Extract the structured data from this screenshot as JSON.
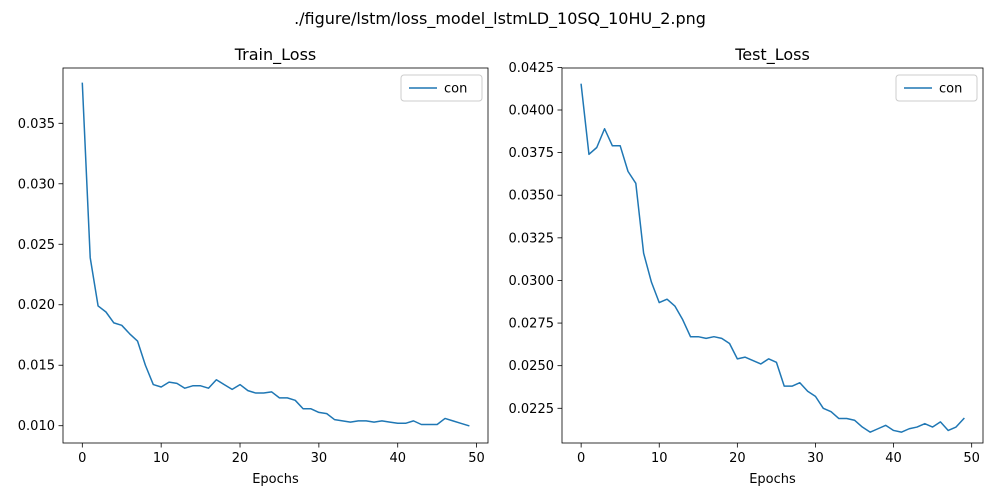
{
  "figure": {
    "suptitle": "./figure/lstm/loss_model_lstmLD_10SQ_10HU_2.png",
    "line_color": "#1f77b4"
  },
  "chart_data": [
    {
      "type": "line",
      "title": "Train_Loss",
      "xlabel": "Epochs",
      "ylabel": "",
      "xlim": [
        -2.45,
        51.45
      ],
      "ylim": [
        0.008571,
        0.039571
      ],
      "x_ticks": [
        0,
        10,
        20,
        30,
        40,
        50
      ],
      "x_tick_labels": [
        "0",
        "10",
        "20",
        "30",
        "40",
        "50"
      ],
      "y_ticks": [
        0.01,
        0.015,
        0.02,
        0.025,
        0.03,
        0.035
      ],
      "y_tick_labels": [
        "0.010",
        "0.015",
        "0.020",
        "0.025",
        "0.030",
        "0.035"
      ],
      "grid": false,
      "legend_position": "top-right",
      "series": [
        {
          "name": "con",
          "x": [
            0,
            1,
            2,
            3,
            4,
            5,
            6,
            7,
            8,
            9,
            10,
            11,
            12,
            13,
            14,
            15,
            16,
            17,
            18,
            19,
            20,
            21,
            22,
            23,
            24,
            25,
            26,
            27,
            28,
            29,
            30,
            31,
            32,
            33,
            34,
            35,
            36,
            37,
            38,
            39,
            40,
            41,
            42,
            43,
            44,
            45,
            46,
            47,
            48,
            49
          ],
          "values": [
            0.0383,
            0.0239,
            0.0199,
            0.0194,
            0.0185,
            0.0183,
            0.0176,
            0.017,
            0.015,
            0.0134,
            0.0132,
            0.0136,
            0.0135,
            0.0131,
            0.0133,
            0.0133,
            0.0131,
            0.0138,
            0.0134,
            0.013,
            0.0134,
            0.0129,
            0.0127,
            0.0127,
            0.0128,
            0.0123,
            0.0123,
            0.0121,
            0.0114,
            0.0114,
            0.0111,
            0.011,
            0.0105,
            0.0104,
            0.0103,
            0.0104,
            0.0104,
            0.0103,
            0.0104,
            0.0103,
            0.0102,
            0.0102,
            0.0104,
            0.0101,
            0.0101,
            0.0101,
            0.0106,
            0.0104,
            0.0102,
            0.01
          ]
        }
      ]
    },
    {
      "type": "line",
      "title": "Test_Loss",
      "xlabel": "Epochs",
      "ylabel": "",
      "xlim": [
        -2.45,
        51.45
      ],
      "ylim": [
        0.020464,
        0.042464
      ],
      "x_ticks": [
        0,
        10,
        20,
        30,
        40,
        50
      ],
      "x_tick_labels": [
        "0",
        "10",
        "20",
        "30",
        "40",
        "50"
      ],
      "y_ticks": [
        0.0225,
        0.025,
        0.0275,
        0.03,
        0.0325,
        0.035,
        0.0375,
        0.04,
        0.0425
      ],
      "y_tick_labels": [
        "0.0225",
        "0.0250",
        "0.0275",
        "0.0300",
        "0.0325",
        "0.0350",
        "0.0375",
        "0.0400",
        "0.0425"
      ],
      "grid": false,
      "legend_position": "top-right",
      "series": [
        {
          "name": "con",
          "x": [
            0,
            1,
            2,
            3,
            4,
            5,
            6,
            7,
            8,
            9,
            10,
            11,
            12,
            13,
            14,
            15,
            16,
            17,
            18,
            19,
            20,
            21,
            22,
            23,
            24,
            25,
            26,
            27,
            28,
            29,
            30,
            31,
            32,
            33,
            34,
            35,
            36,
            37,
            38,
            39,
            40,
            41,
            42,
            43,
            44,
            45,
            46,
            47,
            48,
            49
          ],
          "values": [
            0.0415,
            0.0374,
            0.0378,
            0.0389,
            0.0379,
            0.0379,
            0.0364,
            0.0357,
            0.0316,
            0.0299,
            0.0287,
            0.0289,
            0.0285,
            0.0277,
            0.0267,
            0.0267,
            0.0266,
            0.0267,
            0.0266,
            0.0263,
            0.0254,
            0.0255,
            0.0253,
            0.0251,
            0.0254,
            0.0252,
            0.0238,
            0.0238,
            0.024,
            0.0235,
            0.0232,
            0.0225,
            0.0223,
            0.0219,
            0.0219,
            0.0218,
            0.0214,
            0.0211,
            0.0213,
            0.0215,
            0.0212,
            0.0211,
            0.0213,
            0.0214,
            0.0216,
            0.0214,
            0.0217,
            0.0212,
            0.0214,
            0.0219
          ]
        }
      ]
    }
  ]
}
